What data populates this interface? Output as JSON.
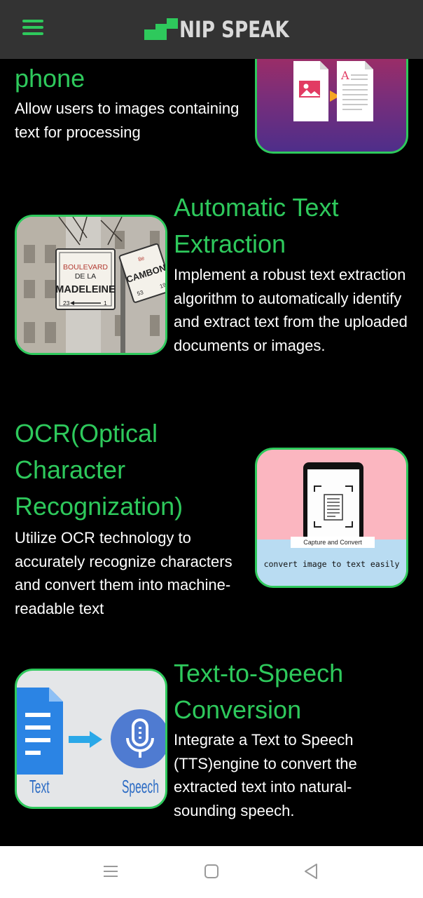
{
  "header": {
    "menu_icon": "hamburger-menu-icon",
    "logo_text": "NIP SPEAK",
    "accent_color": "#2ec95c"
  },
  "features": [
    {
      "title": "phone",
      "description": "Allow users to images containing text for processing",
      "image": "image-to-document-illustration"
    },
    {
      "title": "Automatic Text Extraction",
      "description": "Implement a robust text extraction algorithm to automatically identify and extract text from the uploaded documents or images.",
      "image": "street-sign-photo",
      "sign_texts": [
        "BOULEVARD",
        "DE LA",
        "MADELEINE",
        "23",
        "1",
        "CAMBON",
        "8e",
        "19",
        "53"
      ]
    },
    {
      "title": "OCR(Optical Character Recognization)",
      "description": "Utilize OCR technology to accurately recognize characters and convert them into machine-readable text",
      "image": "phone-capture-illustration",
      "capture_label": "Capture and Convert",
      "caption": "convert image to text easily"
    },
    {
      "title": "Text-to-Speech Conversion",
      "description": "Integrate a Text to Speech (TTS)engine to convert the extracted text into natural-sounding speech.",
      "image": "text-to-speech-illustration",
      "left_label": "Text",
      "right_label": "Speech"
    }
  ],
  "system_nav": {
    "buttons": [
      "recents-icon",
      "home-icon",
      "back-icon"
    ]
  }
}
